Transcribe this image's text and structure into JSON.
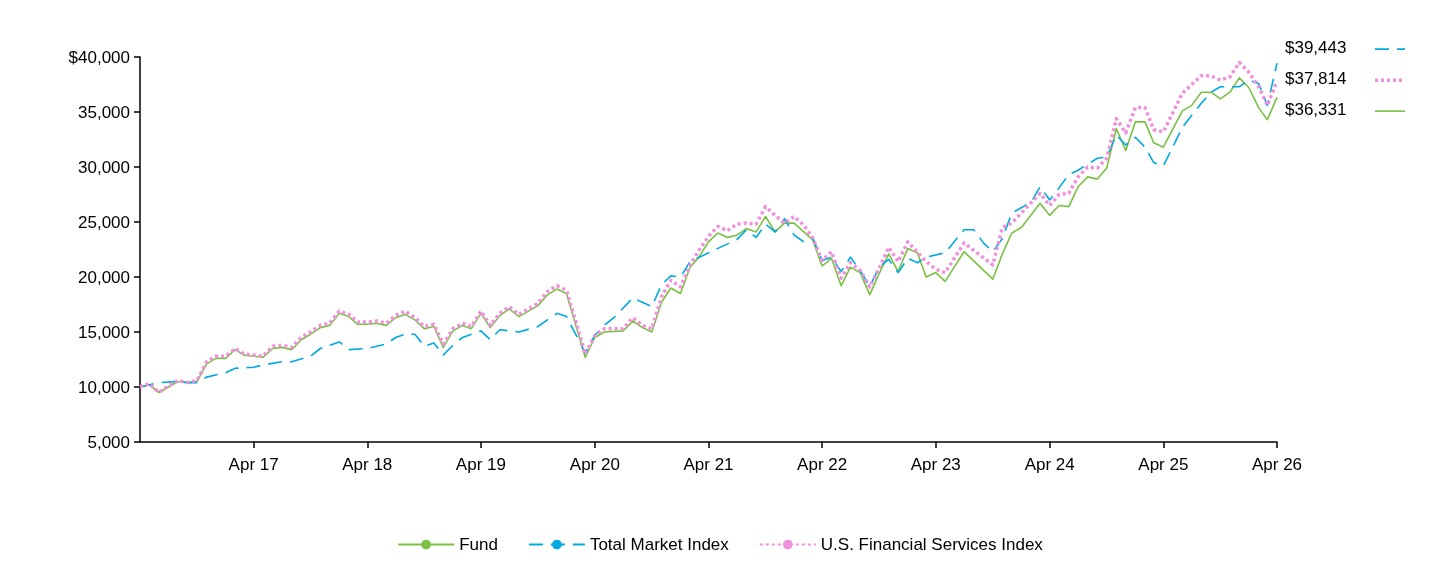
{
  "chart_data": {
    "type": "line",
    "legend": "bottom",
    "grid": false,
    "marker": "none",
    "xlim": [
      "2016-04",
      "2026-04"
    ],
    "xticks": [
      {
        "value": "2017-04",
        "label": "Apr 17"
      },
      {
        "value": "2018-04",
        "label": "Apr 18"
      },
      {
        "value": "2019-04",
        "label": "Apr 19"
      },
      {
        "value": "2020-04",
        "label": "Apr 20"
      },
      {
        "value": "2021-04",
        "label": "Apr 21"
      },
      {
        "value": "2022-04",
        "label": "Apr 22"
      },
      {
        "value": "2023-04",
        "label": "Apr 23"
      },
      {
        "value": "2024-04",
        "label": "Apr 24"
      },
      {
        "value": "2025-04",
        "label": "Apr 25"
      },
      {
        "value": "2026-04",
        "label": "Apr 26"
      }
    ],
    "ylim": [
      5000,
      40000
    ],
    "yticks": [
      {
        "value": 5000,
        "label": "5,000"
      },
      {
        "value": 10000,
        "label": "10,000"
      },
      {
        "value": 15000,
        "label": "15,000"
      },
      {
        "value": 20000,
        "label": "20,000"
      },
      {
        "value": 25000,
        "label": "25,000"
      },
      {
        "value": 30000,
        "label": "30,000"
      },
      {
        "value": 35000,
        "label": "35,000"
      },
      {
        "value": 40000,
        "label": "$40,000"
      }
    ],
    "series": [
      {
        "name": "Fund",
        "color": "#7ac143",
        "line_style": "solid",
        "x": [
          "2016-04",
          "2016-05",
          "2016-06",
          "2016-07",
          "2016-08",
          "2016-09",
          "2016-10",
          "2016-11",
          "2016-12",
          "2017-01",
          "2017-02",
          "2017-03",
          "2017-05",
          "2017-06",
          "2017-07",
          "2017-08",
          "2017-09",
          "2017-10",
          "2017-11",
          "2017-12",
          "2018-01",
          "2018-02",
          "2018-03",
          "2018-04",
          "2018-05",
          "2018-06",
          "2018-07",
          "2018-08",
          "2018-09",
          "2018-10",
          "2018-11",
          "2018-12",
          "2019-01",
          "2019-02",
          "2019-03",
          "2019-04",
          "2019-05",
          "2019-06",
          "2019-07",
          "2019-08",
          "2019-10",
          "2019-11",
          "2019-12",
          "2020-01",
          "2020-03",
          "2020-04",
          "2020-05",
          "2020-07",
          "2020-08",
          "2020-09",
          "2020-10",
          "2020-11",
          "2020-12",
          "2021-01",
          "2021-02",
          "2021-03",
          "2021-04",
          "2021-05",
          "2021-06",
          "2021-07",
          "2021-08",
          "2021-09",
          "2021-10",
          "2021-11",
          "2021-12",
          "2022-01",
          "2022-03",
          "2022-04",
          "2022-05",
          "2022-06",
          "2022-07",
          "2022-08",
          "2022-09",
          "2022-10",
          "2022-11",
          "2022-12",
          "2023-01",
          "2023-02",
          "2023-03",
          "2023-04",
          "2023-05",
          "2023-07",
          "2023-10",
          "2023-11",
          "2023-12",
          "2024-01",
          "2024-03",
          "2024-04",
          "2024-05",
          "2024-06",
          "2024-07",
          "2024-08",
          "2024-09",
          "2024-10",
          "2024-11",
          "2024-12",
          "2025-01",
          "2025-02",
          "2025-03",
          "2025-04",
          "2025-06",
          "2025-07",
          "2025-08",
          "2025-09",
          "2025-10",
          "2025-11",
          "2025-12",
          "2026-01",
          "2026-02",
          "2026-03",
          "2026-04"
        ],
        "values": [
          10000,
          10200,
          9500,
          10000,
          10500,
          10400,
          10500,
          12100,
          12600,
          12600,
          13400,
          12900,
          12700,
          13500,
          13600,
          13400,
          14300,
          14800,
          15400,
          15600,
          16700,
          16400,
          15700,
          15700,
          15800,
          15600,
          16300,
          16600,
          16100,
          15300,
          15500,
          13600,
          15100,
          15600,
          15300,
          16700,
          15400,
          16500,
          17100,
          16400,
          17400,
          18400,
          18900,
          18500,
          12700,
          14500,
          15000,
          15100,
          16000,
          15400,
          15000,
          17700,
          19000,
          18500,
          20900,
          21800,
          23200,
          24000,
          23600,
          23800,
          24400,
          24100,
          25500,
          24100,
          24900,
          24900,
          23400,
          21000,
          21700,
          19200,
          20900,
          20400,
          18400,
          20300,
          22100,
          20500,
          22600,
          22200,
          20000,
          20400,
          19600,
          22300,
          19800,
          22100,
          24000,
          24500,
          26700,
          25600,
          26500,
          26400,
          28200,
          29100,
          28900,
          29900,
          33500,
          31500,
          34100,
          34100,
          32200,
          31800,
          35100,
          35600,
          36800,
          36800,
          36200,
          36800,
          38100,
          37200,
          35400,
          34300,
          36331
        ]
      },
      {
        "name": "Total Market Index",
        "color": "#00a9e0",
        "line_style": "dashed",
        "x": [
          "2016-04",
          "2016-05",
          "2016-06",
          "2016-08",
          "2016-09",
          "2016-10",
          "2016-11",
          "2017-01",
          "2017-02",
          "2017-04",
          "2017-05",
          "2017-07",
          "2017-08",
          "2017-10",
          "2017-11",
          "2018-01",
          "2018-02",
          "2018-04",
          "2018-06",
          "2018-07",
          "2018-08",
          "2018-09",
          "2018-10",
          "2018-11",
          "2018-12",
          "2019-01",
          "2019-02",
          "2019-04",
          "2019-05",
          "2019-06",
          "2019-08",
          "2019-10",
          "2019-12",
          "2020-01",
          "2020-03",
          "2020-04",
          "2020-05",
          "2020-06",
          "2020-08",
          "2020-10",
          "2020-11",
          "2020-12",
          "2021-01",
          "2021-02",
          "2021-05",
          "2021-07",
          "2021-08",
          "2021-09",
          "2021-10",
          "2021-11",
          "2021-12",
          "2022-01",
          "2022-02",
          "2022-03",
          "2022-04",
          "2022-05",
          "2022-06",
          "2022-07",
          "2022-08",
          "2022-09",
          "2022-10",
          "2022-11",
          "2022-12",
          "2023-01",
          "2023-02",
          "2023-03",
          "2023-05",
          "2023-07",
          "2023-08",
          "2023-09",
          "2023-10",
          "2023-11",
          "2023-12",
          "2024-02",
          "2024-03",
          "2024-04",
          "2024-05",
          "2024-06",
          "2024-07",
          "2024-09",
          "2024-10",
          "2024-11",
          "2024-12",
          "2025-01",
          "2025-02",
          "2025-03",
          "2025-04",
          "2025-05",
          "2025-06",
          "2025-07",
          "2025-08",
          "2025-09",
          "2025-10",
          "2025-12",
          "2026-01",
          "2026-02",
          "2026-03",
          "2026-04"
        ],
        "values": [
          10000,
          10200,
          10400,
          10500,
          10400,
          10400,
          10900,
          11300,
          11700,
          11800,
          12000,
          12300,
          12300,
          12800,
          13500,
          14100,
          13400,
          13500,
          13900,
          14500,
          14800,
          14800,
          13700,
          14000,
          12900,
          13800,
          14500,
          15100,
          14300,
          15200,
          15000,
          15500,
          16700,
          16400,
          13100,
          14700,
          15600,
          16300,
          18100,
          17300,
          19300,
          20100,
          20000,
          21400,
          22600,
          23400,
          24300,
          23600,
          24800,
          24100,
          25300,
          23800,
          23200,
          23600,
          21500,
          21800,
          20500,
          21800,
          20600,
          19100,
          20900,
          21600,
          20400,
          21700,
          21300,
          21800,
          22200,
          24300,
          24300,
          23100,
          22300,
          23500,
          25800,
          26800,
          28200,
          27000,
          28100,
          29300,
          29700,
          30800,
          30900,
          32900,
          32000,
          32700,
          31800,
          30400,
          30100,
          31800,
          33600,
          34700,
          35800,
          36800,
          37300,
          37300,
          37900,
          37600,
          35600,
          39443
        ]
      },
      {
        "name": "U.S. Financial Services Index",
        "color": "#f28fdc",
        "line_style": "dotted",
        "x": [
          "2016-04",
          "2016-05",
          "2016-06",
          "2016-07",
          "2016-08",
          "2016-09",
          "2016-10",
          "2016-11",
          "2016-12",
          "2017-01",
          "2017-02",
          "2017-03",
          "2017-05",
          "2017-06",
          "2017-07",
          "2017-08",
          "2017-09",
          "2017-10",
          "2017-11",
          "2017-12",
          "2018-01",
          "2018-02",
          "2018-03",
          "2018-04",
          "2018-05",
          "2018-06",
          "2018-07",
          "2018-08",
          "2018-09",
          "2018-10",
          "2018-11",
          "2018-12",
          "2019-01",
          "2019-02",
          "2019-03",
          "2019-04",
          "2019-05",
          "2019-06",
          "2019-07",
          "2019-08",
          "2019-10",
          "2019-11",
          "2019-12",
          "2020-01",
          "2020-03",
          "2020-04",
          "2020-05",
          "2020-07",
          "2020-08",
          "2020-09",
          "2020-10",
          "2020-11",
          "2020-12",
          "2021-01",
          "2021-02",
          "2021-03",
          "2021-04",
          "2021-05",
          "2021-06",
          "2021-07",
          "2021-08",
          "2021-09",
          "2021-10",
          "2021-11",
          "2021-12",
          "2022-01",
          "2022-02",
          "2022-03",
          "2022-04",
          "2022-05",
          "2022-06",
          "2022-07",
          "2022-08",
          "2022-09",
          "2022-10",
          "2022-11",
          "2022-12",
          "2023-01",
          "2023-03",
          "2023-04",
          "2023-05",
          "2023-07",
          "2023-10",
          "2023-11",
          "2023-12",
          "2024-03",
          "2024-04",
          "2024-05",
          "2024-06",
          "2024-07",
          "2024-08",
          "2024-09",
          "2024-10",
          "2024-11",
          "2024-12",
          "2025-01",
          "2025-02",
          "2025-03",
          "2025-04",
          "2025-06",
          "2025-07",
          "2025-08",
          "2025-09",
          "2025-10",
          "2025-11",
          "2025-12",
          "2026-01",
          "2026-02",
          "2026-03",
          "2026-04"
        ],
        "values": [
          10000,
          10300,
          9500,
          10100,
          10600,
          10400,
          10600,
          12300,
          12800,
          12800,
          13500,
          13000,
          12800,
          13700,
          13800,
          13600,
          14500,
          15000,
          15600,
          15800,
          16900,
          16600,
          15900,
          15900,
          16000,
          15800,
          16500,
          16900,
          16300,
          15500,
          15700,
          13900,
          15300,
          15800,
          15500,
          16900,
          15600,
          16700,
          17300,
          16600,
          17600,
          18700,
          19200,
          18800,
          13000,
          14700,
          15300,
          15300,
          16300,
          15600,
          15300,
          18200,
          19700,
          19100,
          21100,
          22400,
          23700,
          24600,
          24200,
          24800,
          24900,
          24800,
          26400,
          25600,
          24900,
          25500,
          24700,
          23600,
          21500,
          22300,
          19900,
          21300,
          20600,
          19100,
          20800,
          22700,
          21400,
          23200,
          21400,
          20700,
          20400,
          23100,
          21100,
          24500,
          24900,
          27600,
          26500,
          27500,
          27600,
          29100,
          30000,
          29900,
          30800,
          34400,
          33100,
          35400,
          35400,
          33400,
          33200,
          36700,
          37500,
          38300,
          38300,
          37900,
          38200,
          39500,
          38600,
          37300,
          35600,
          37814
        ]
      }
    ],
    "annotations": [
      {
        "text": "$39,443",
        "x": "2026-04",
        "y": 39443
      },
      {
        "text": "$37,814",
        "x": "2026-04",
        "y": 37814
      },
      {
        "text": "$36,331",
        "x": "2026-04",
        "y": 36331
      }
    ]
  }
}
